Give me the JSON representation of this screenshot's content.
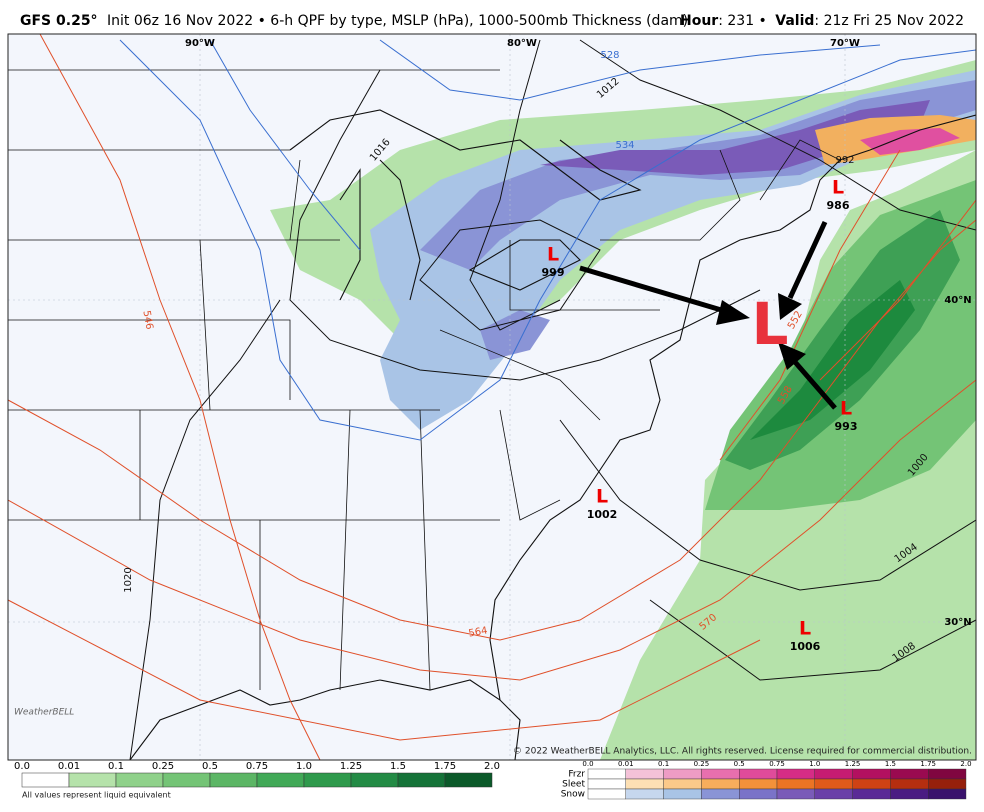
{
  "header": {
    "model": "GFS 0.25°",
    "description": "Init 06z 16 Nov 2022 • 6-h QPF by type, MSLP (hPa), 1000-500mb Thickness (dam)",
    "hour_label": "Hour",
    "hour": ": 231 •",
    "valid_label": "Valid",
    "valid": ": 21z Fri 25 Nov 2022"
  },
  "map": {
    "longitudes": [
      "90°W",
      "80°W",
      "70°W"
    ],
    "latitudes": [
      "40°N",
      "30°N"
    ],
    "isobar_labels": [
      "1012",
      "1016",
      "1020",
      "1000",
      "1004",
      "1008",
      "992"
    ],
    "thickness_labels": [
      "528",
      "534",
      "546",
      "552",
      "558",
      "564",
      "570"
    ],
    "lows": [
      {
        "symbol": "L",
        "pressure": "999"
      },
      {
        "symbol": "L",
        "pressure": "986"
      },
      {
        "symbol": "L",
        "pressure": "993"
      },
      {
        "symbol": "L",
        "pressure": "1002"
      },
      {
        "symbol": "L",
        "pressure": "1006"
      }
    ],
    "center_low": "L",
    "logo": "WeatherBELL",
    "copyright": "© 2022 WeatherBELL Analytics, LLC. All rights reserved. License required for commercial distribution."
  },
  "legend": {
    "qpf_scale": [
      "0.0",
      "0.01",
      "0.1",
      "0.25",
      "0.5",
      "0.75",
      "1.0",
      "1.25",
      "1.5",
      "1.75",
      "2.0"
    ],
    "note": "All values represent liquid equivalent",
    "ptype_scale": [
      "0.0",
      "0.01",
      "0.1",
      "0.25",
      "0.5",
      "0.75",
      "1.0",
      "1.25",
      "1.5",
      "1.75",
      "2.0"
    ],
    "ptypes": [
      "Frzr",
      "Sleet",
      "Snow"
    ]
  }
}
